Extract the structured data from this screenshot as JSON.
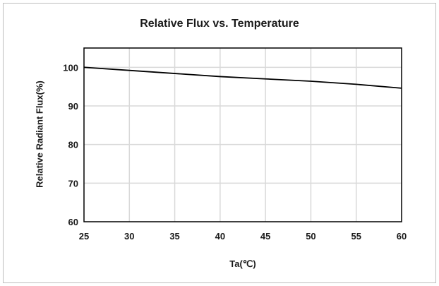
{
  "chart_data": {
    "type": "line",
    "title": "Relative Flux vs. Temperature",
    "xlabel": "Ta(℃)",
    "ylabel": "Relative Radiant Flux(%)",
    "xlim": [
      25,
      60
    ],
    "ylim": [
      60,
      105
    ],
    "x_ticks": [
      25,
      30,
      35,
      40,
      45,
      50,
      55,
      60
    ],
    "y_ticks": [
      60,
      70,
      80,
      90,
      100
    ],
    "grid": true,
    "series": [
      {
        "x": [
          25,
          30,
          35,
          40,
          45,
          50,
          55,
          60
        ],
        "values": [
          100,
          99.2,
          98.4,
          97.6,
          97.0,
          96.4,
          95.6,
          94.6
        ],
        "color": "#000000"
      }
    ]
  }
}
